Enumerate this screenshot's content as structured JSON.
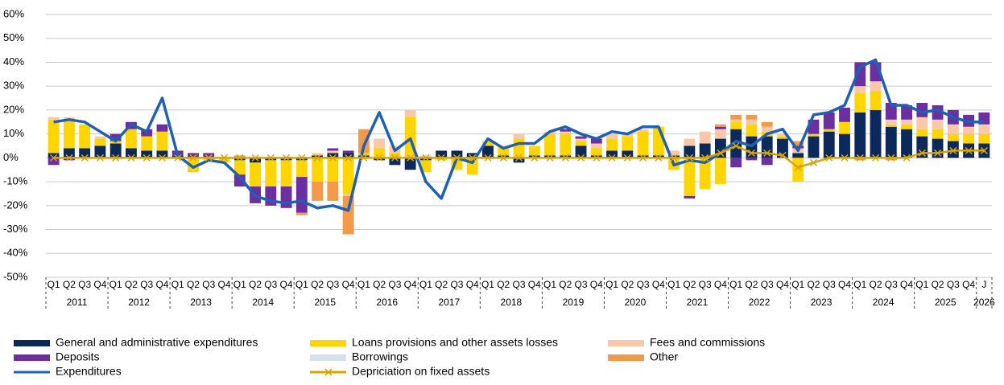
{
  "chart_data": {
    "type": "bar-line",
    "categories": [
      "Q1",
      "Q2",
      "Q3",
      "Q4",
      "Q1",
      "Q2",
      "Q3",
      "Q4",
      "Q1",
      "Q2",
      "Q3",
      "Q4",
      "Q1",
      "Q2",
      "Q3",
      "Q4",
      "Q1",
      "Q2",
      "Q3",
      "Q4",
      "Q1",
      "Q2",
      "Q3",
      "Q4",
      "Q1",
      "Q2",
      "Q3",
      "Q4",
      "Q1",
      "Q2",
      "Q3",
      "Q4",
      "Q1",
      "Q2",
      "Q3",
      "Q4",
      "Q1",
      "Q2",
      "Q3",
      "Q4",
      "Q1",
      "Q2",
      "Q3",
      "Q4",
      "Q1",
      "Q2",
      "Q3",
      "Q4",
      "Q1",
      "Q2",
      "Q3",
      "Q4",
      "Q1",
      "Q2",
      "Q3",
      "Q4",
      "Q1",
      "Q2",
      "Q3",
      "Q4",
      "J"
    ],
    "years": [
      "2011",
      "2012",
      "2013",
      "2014",
      "2015",
      "2016",
      "2017",
      "2018",
      "2019",
      "2020",
      "2021",
      "2022",
      "2023",
      "2024",
      "2025",
      "2026"
    ],
    "ylim": [
      -50,
      60
    ],
    "yticks": [
      {
        "value": -50,
        "label": "-50%"
      },
      {
        "value": -40,
        "label": "-40%"
      },
      {
        "value": -30,
        "label": "-30%"
      },
      {
        "value": -20,
        "label": "-20%"
      },
      {
        "value": -10,
        "label": "-10%"
      },
      {
        "value": 0,
        "label": "0%"
      },
      {
        "value": 10,
        "label": "10%"
      },
      {
        "value": 20,
        "label": "20%"
      },
      {
        "value": 30,
        "label": "30%"
      },
      {
        "value": 40,
        "label": "40%"
      },
      {
        "value": 50,
        "label": "50%"
      },
      {
        "value": 60,
        "label": "60%"
      }
    ],
    "grid": true,
    "series": [
      {
        "name": "General and administrative expenditures",
        "kind": "bar",
        "color": "#0b2a5b",
        "values": [
          2,
          4,
          4,
          5,
          6,
          4,
          3,
          3,
          1,
          0,
          0,
          0,
          -1,
          -2,
          -1,
          -1,
          -1,
          1,
          2,
          2,
          1,
          -1,
          -3,
          -5,
          -1,
          3,
          3,
          2,
          5,
          1,
          -2,
          1,
          1,
          1,
          5,
          1,
          3,
          3,
          1,
          1,
          1,
          5,
          6,
          8,
          12,
          9,
          9,
          8,
          2,
          9,
          11,
          10,
          19,
          20,
          13,
          12,
          9,
          8,
          7,
          6,
          6
        ]
      },
      {
        "name": "Loans provisions and other assets losses",
        "kind": "bar",
        "color": "#ffd500",
        "values": [
          14,
          12,
          10,
          3,
          1,
          8,
          6,
          8,
          0,
          -6,
          -1,
          -2,
          -6,
          -10,
          -11,
          -11,
          -7,
          -10,
          -10,
          -15,
          1,
          4,
          2,
          17,
          -5,
          -1,
          -5,
          -7,
          2,
          4,
          8,
          4,
          9,
          9,
          2,
          3,
          5,
          6,
          10,
          12,
          -5,
          -16,
          -13,
          -11,
          3,
          5,
          2,
          1,
          -10,
          1,
          1,
          5,
          8,
          8,
          1,
          2,
          3,
          4,
          3,
          4,
          4
        ]
      },
      {
        "name": "Fees and commissions",
        "kind": "bar",
        "color": "#f9c8a8",
        "values": [
          1,
          1,
          0,
          1,
          0,
          0,
          0,
          0,
          0,
          0,
          0,
          0,
          0,
          0,
          0,
          0,
          0,
          1,
          1,
          -1,
          0,
          4,
          3,
          3,
          1,
          0,
          0,
          0,
          0,
          0,
          2,
          0,
          1,
          1,
          1,
          2,
          2,
          1,
          1,
          0,
          2,
          3,
          5,
          4,
          1,
          2,
          2,
          1,
          2,
          0,
          0,
          0,
          3,
          4,
          2,
          2,
          5,
          4,
          4,
          3,
          4
        ]
      },
      {
        "name": "Deposits",
        "kind": "bar",
        "color": "#6b2fa0",
        "values": [
          -3,
          -1,
          0,
          0,
          3,
          3,
          3,
          3,
          2,
          2,
          2,
          0,
          -5,
          -7,
          -8,
          -9,
          -15,
          0,
          1,
          1,
          0,
          0,
          0,
          0,
          0,
          0,
          0,
          0,
          0,
          0,
          0,
          0,
          0,
          1,
          1,
          2,
          0,
          0,
          0,
          0,
          0,
          -1,
          0,
          1,
          -4,
          -1,
          -3,
          0,
          1,
          6,
          7,
          6,
          10,
          8,
          7,
          6,
          6,
          6,
          6,
          5,
          5
        ]
      },
      {
        "name": "Borrowings",
        "kind": "bar",
        "color": "#d6e0f0",
        "values": [
          0,
          0,
          0,
          0,
          0,
          0,
          0,
          0,
          0,
          0,
          0,
          0,
          0,
          0,
          0,
          0,
          0,
          0,
          0,
          0,
          0,
          0,
          0,
          0,
          0,
          0,
          0,
          0,
          0,
          0,
          0,
          0,
          0,
          0,
          0,
          0,
          0,
          0,
          0,
          0,
          0,
          0,
          0,
          0,
          0,
          0,
          0,
          0,
          0,
          0,
          0,
          0,
          0,
          0,
          0,
          0,
          0,
          0,
          0,
          0,
          0
        ]
      },
      {
        "name": "Other",
        "kind": "bar",
        "color": "#f39a4a",
        "values": [
          0,
          0,
          0,
          0,
          0,
          0,
          0,
          0,
          0,
          0,
          0,
          0,
          1,
          0,
          0,
          0,
          -1,
          -8,
          -8,
          -16,
          10,
          0,
          0,
          0,
          0,
          0,
          0,
          0,
          0,
          0,
          0,
          0,
          0,
          0,
          0,
          0,
          0,
          0,
          0,
          0,
          0,
          0,
          0,
          1,
          2,
          2,
          2,
          0,
          2,
          0,
          0,
          0,
          -1,
          0,
          -1,
          0,
          0,
          0,
          0,
          0,
          0
        ]
      },
      {
        "name": "Expenditures",
        "kind": "line",
        "color": "#1f5fb4",
        "values": [
          15,
          16,
          15,
          11,
          7,
          14,
          11,
          25,
          1,
          -4,
          -1,
          -2,
          -8,
          -16,
          -18,
          -19,
          -18,
          -21,
          -20,
          -22,
          5,
          19,
          3,
          8,
          -10,
          -17,
          0,
          -2,
          8,
          4,
          6,
          6,
          11,
          13,
          10,
          8,
          11,
          10,
          13,
          13,
          -3,
          -1,
          -2,
          2,
          7,
          5,
          10,
          12,
          3,
          18,
          19,
          22,
          38,
          41,
          22,
          22,
          19,
          20,
          17,
          15,
          15
        ]
      },
      {
        "name": "Depriciation on fixed assets",
        "kind": "line",
        "marker": "x",
        "color": "#d9a400",
        "values": [
          0,
          0,
          0,
          0,
          0,
          0,
          0,
          0,
          0,
          0,
          0,
          0,
          0,
          0,
          0,
          0,
          0,
          0,
          0,
          0,
          0,
          0,
          0,
          0,
          0,
          0,
          0,
          0,
          0,
          0,
          0,
          0,
          0,
          0,
          0,
          0,
          0,
          0,
          0,
          0,
          0,
          0,
          0,
          2,
          5,
          2,
          2,
          1,
          -4,
          -2,
          0,
          0,
          0,
          0,
          0,
          0,
          2,
          2,
          3,
          3,
          3
        ]
      }
    ]
  }
}
